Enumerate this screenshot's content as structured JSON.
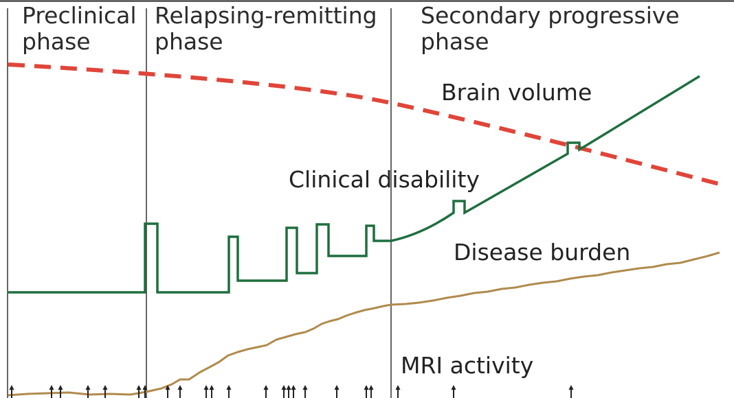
{
  "phases": [
    {
      "line1": "Preclinical",
      "line2": "phase"
    },
    {
      "line1": "Relapsing-remitting",
      "line2": "phase"
    },
    {
      "line1": "Secondary progressive",
      "line2": "phase"
    }
  ],
  "curves": {
    "brain_volume": {
      "label": "Brain volume",
      "color": "#e0453a"
    },
    "clinical_disability": {
      "label": "Clinical disability",
      "color": "#1f6e3f"
    },
    "disease_burden": {
      "label": "Disease burden",
      "color": "#b08a4c"
    },
    "mri_activity": {
      "label": "MRI activity",
      "color": "#222222"
    }
  }
}
